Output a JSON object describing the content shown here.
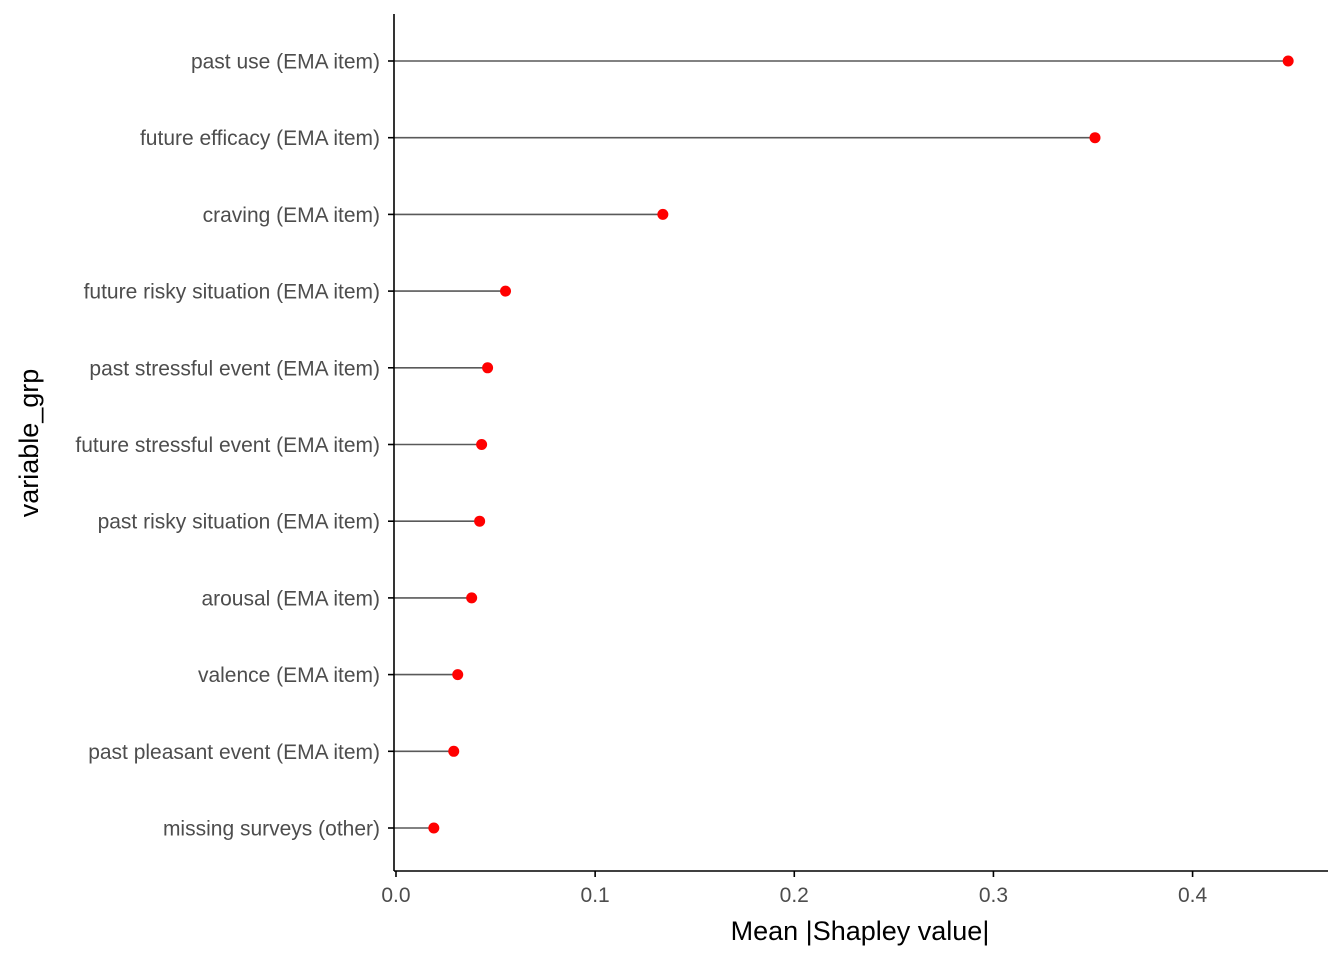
{
  "chart_data": {
    "type": "lollipop",
    "orientation": "horizontal",
    "categories": [
      "past use (EMA item)",
      "future efficacy (EMA item)",
      "craving (EMA item)",
      "future risky situation (EMA item)",
      "past stressful event (EMA item)",
      "future stressful event (EMA item)",
      "past risky situation (EMA item)",
      "arousal (EMA item)",
      "valence (EMA item)",
      "past pleasant event (EMA item)",
      "missing surveys (other)"
    ],
    "values": [
      0.448,
      0.351,
      0.134,
      0.055,
      0.046,
      0.043,
      0.042,
      0.038,
      0.031,
      0.029,
      0.019
    ],
    "xlabel": "Mean |Shapley value|",
    "ylabel": "variable_grp",
    "xlim": [
      -0.001,
      0.468
    ],
    "x_ticks": [
      0.0,
      0.1,
      0.2,
      0.3,
      0.4
    ],
    "x_tick_labels": [
      "0.0",
      "0.1",
      "0.2",
      "0.3",
      "0.4"
    ],
    "grid": false,
    "legend": "none",
    "colors": {
      "point": "#ff0000",
      "segment": "#595959",
      "axis": "#000000",
      "tick_label": "#4d4d4d"
    }
  }
}
